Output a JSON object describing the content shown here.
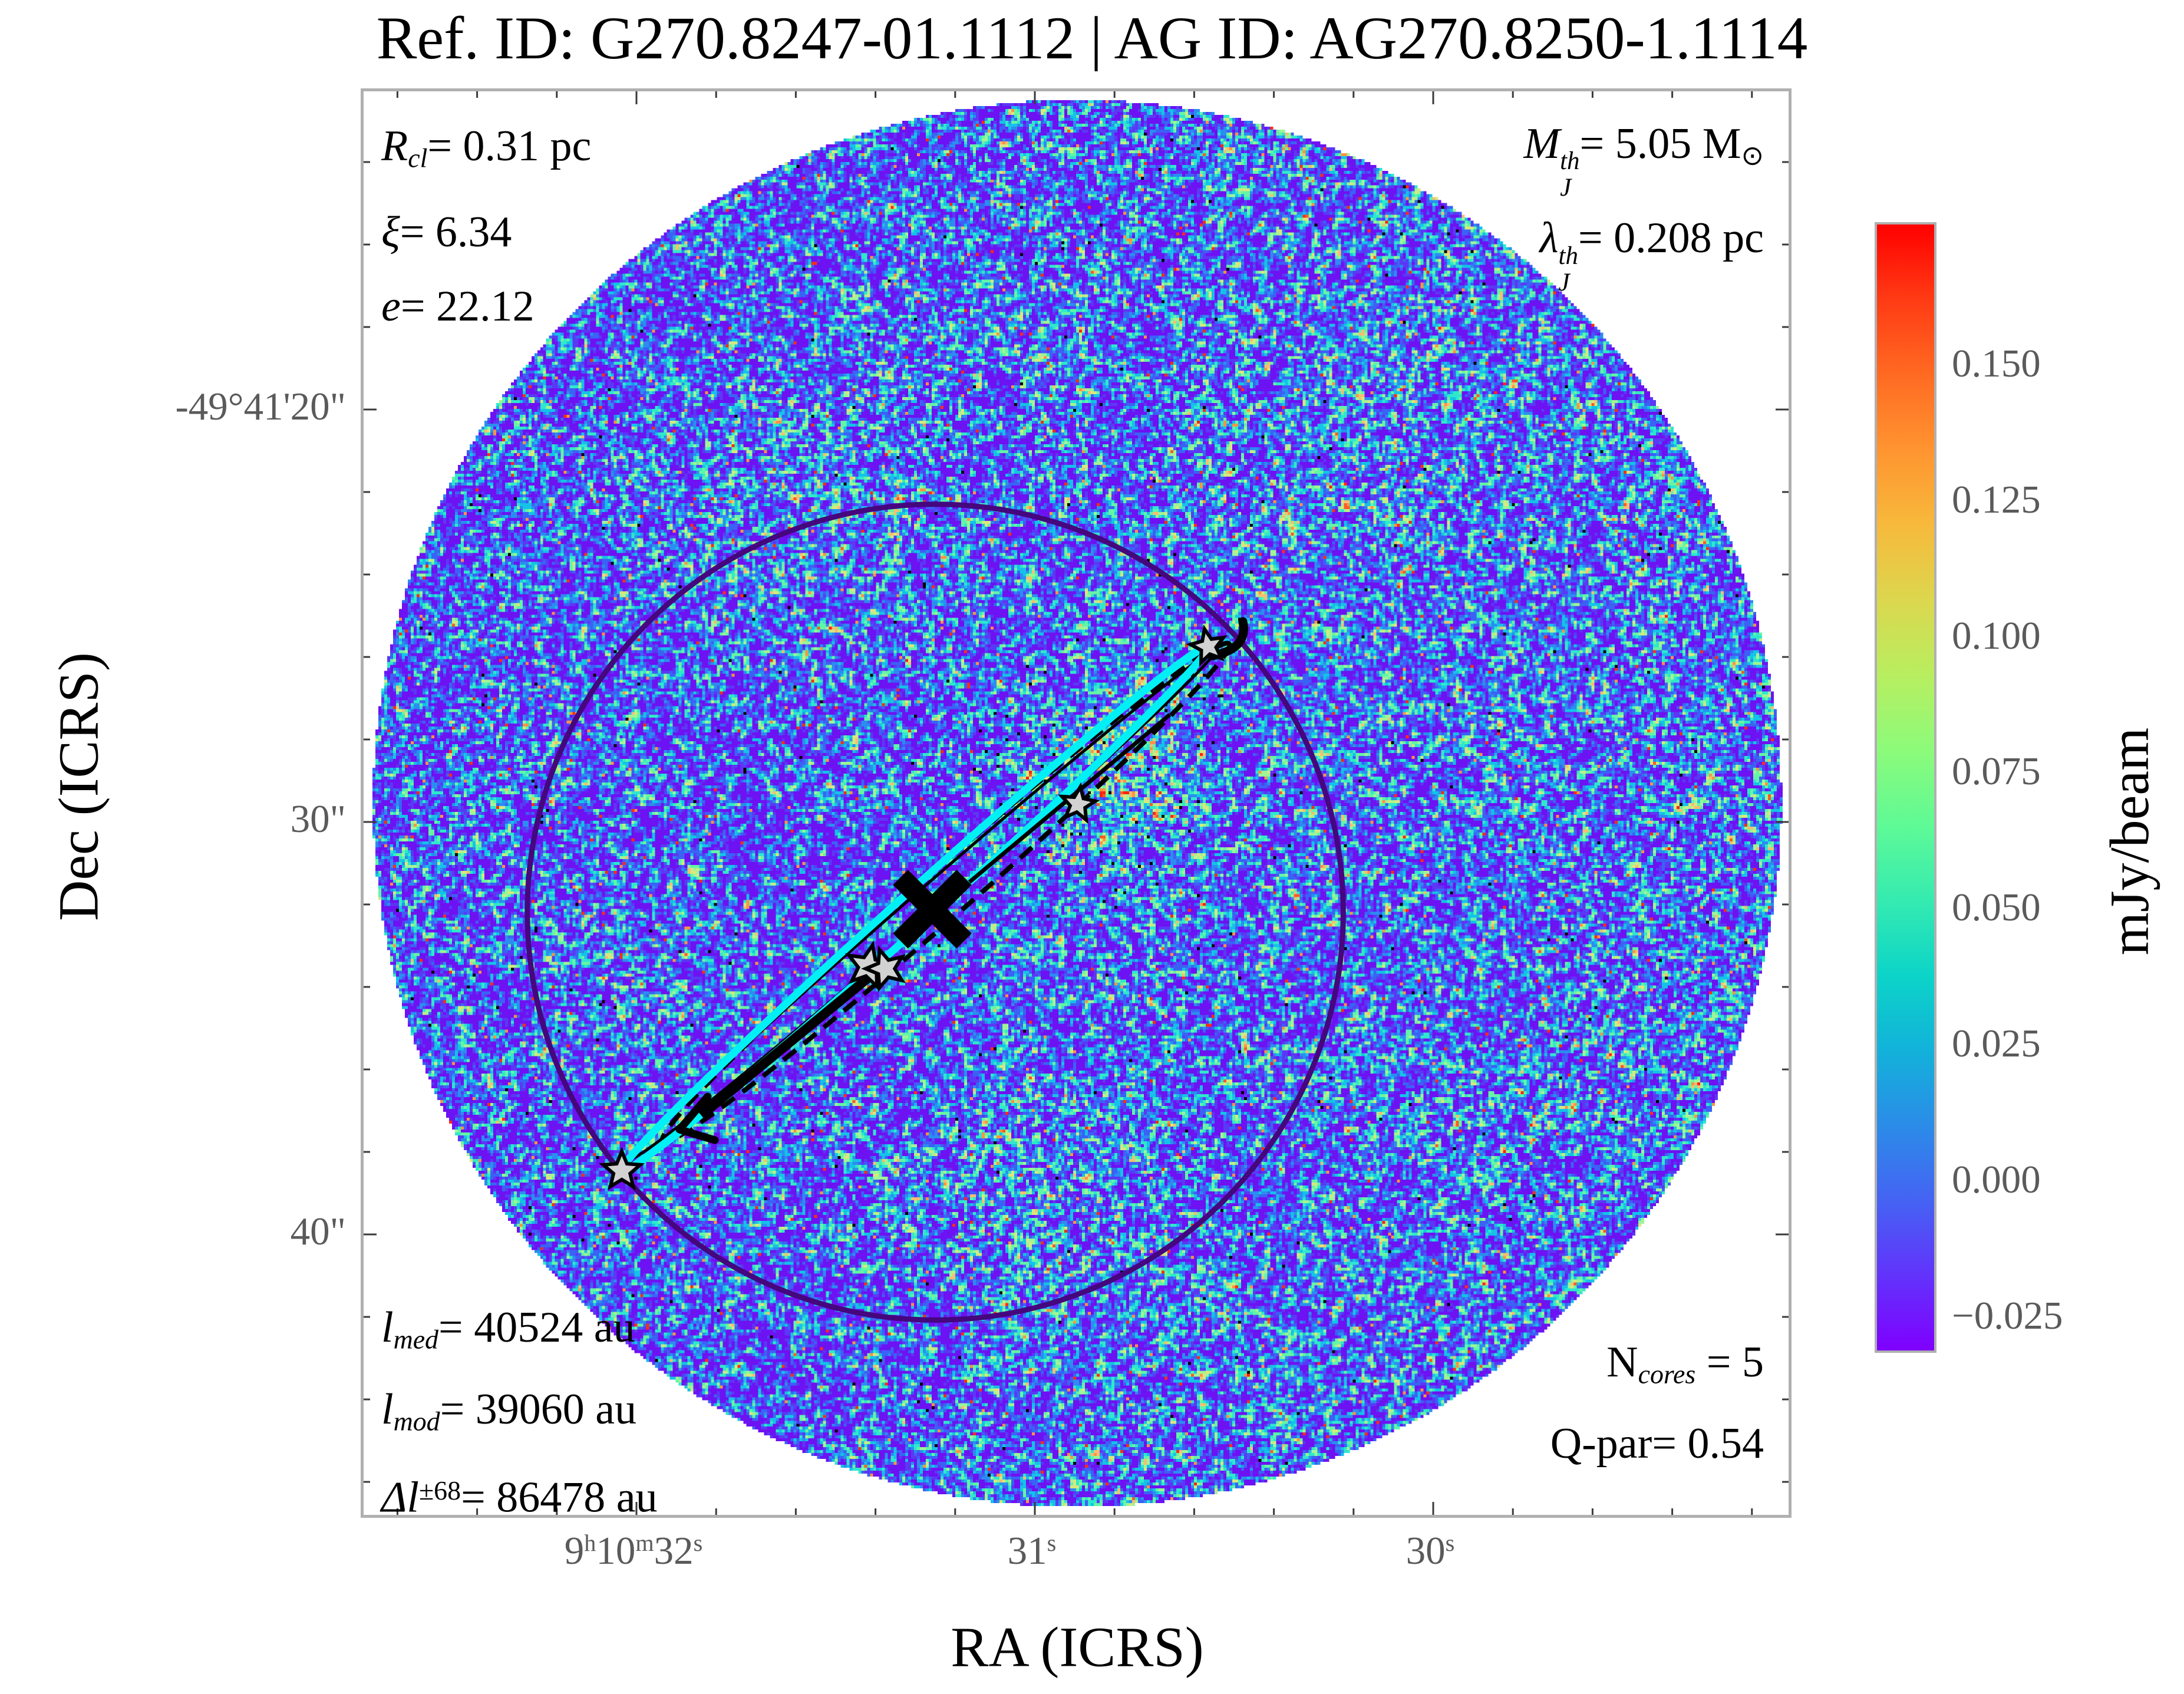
{
  "title": "Ref. ID: G270.8247-01.1112 | AG ID: AG270.8250-1.1114",
  "axes": {
    "xlabel": "RA (ICRS)",
    "ylabel": "Dec (ICRS)",
    "x_tick_labels": [
      [
        [
          "9",
          "h"
        ],
        [
          "10",
          "m"
        ],
        [
          "32",
          "s"
        ]
      ],
      [
        [
          "31",
          "s"
        ]
      ],
      [
        [
          "30",
          "s"
        ]
      ]
    ],
    "y_tick_labels": [
      "-49°41'20\"",
      "30\"",
      "40\""
    ]
  },
  "annotations": {
    "top_left": [
      [
        {
          "t": "R",
          "i": true
        },
        {
          "t": "cl",
          "sub": true,
          "i": true
        },
        {
          "t": "= 0.31 pc"
        }
      ],
      [
        {
          "t": "ξ",
          "i": true
        },
        {
          "t": "= 6.34"
        }
      ],
      [
        {
          "t": "e",
          "i": true
        },
        {
          "t": "= 22.12"
        }
      ]
    ],
    "top_right": [
      [
        {
          "t": "M",
          "i": true
        },
        {
          "stack": {
            "sup": "th",
            "sub": "J"
          },
          "i": true
        },
        {
          "t": "= 5.05 M"
        },
        {
          "t": "⊙",
          "sub": true
        }
      ],
      [
        {
          "t": "λ",
          "i": true
        },
        {
          "stack": {
            "sup": "th",
            "sub": "J"
          },
          "i": true
        },
        {
          "t": "= 0.208 pc"
        }
      ]
    ],
    "bottom_left": [
      [
        {
          "t": "l",
          "i": true
        },
        {
          "t": "med",
          "sub": true,
          "i": true
        },
        {
          "t": "= 40524 au"
        }
      ],
      [
        {
          "t": "l",
          "i": true
        },
        {
          "t": "mod",
          "sub": true,
          "i": true
        },
        {
          "t": "= 39060 au"
        }
      ],
      [
        {
          "t": "Δl",
          "i": true
        },
        {
          "t": "±68",
          "sup": true
        },
        {
          "t": "= 86478 au"
        }
      ]
    ],
    "bottom_right": [
      [
        {
          "t": "N"
        },
        {
          "t": "cores",
          "sub": true,
          "i": true
        },
        {
          "t": " = 5"
        }
      ],
      [
        {
          "t": "Q-par= 0.54"
        }
      ]
    ]
  },
  "colorbar": {
    "label": "mJy/beam",
    "tick_values": [
      0.15,
      0.125,
      0.1,
      0.075,
      0.05,
      0.025,
      0.0,
      -0.025
    ],
    "tick_labels": [
      "0.150",
      "0.125",
      "0.100",
      "0.075",
      "0.050",
      "0.025",
      "0.000",
      "−0.025"
    ],
    "vmin": -0.031,
    "vmax": 0.176
  },
  "colors": {
    "accent_cyan": "#00f0f5",
    "clump_circle": "#45067e",
    "star_fill": "#d2d2d2",
    "star_edge": "#000000",
    "tick_text": "#5a5a5a",
    "spine": "#b0b0b0",
    "cb_gradient_bottom_to_top": [
      "#7f00ff",
      "#6233fb",
      "#4563f3",
      "#2b8ce8",
      "#12b2da",
      "#0cd4c8",
      "#35ebb0",
      "#5ffa96",
      "#8cfb7a",
      "#b8ee60",
      "#dcd74e",
      "#f7b93c",
      "#ff9430",
      "#ff6a22",
      "#ff3b14",
      "#ff0000"
    ],
    "noise_palette": [
      [
        0.44,
        "#6d12f2"
      ],
      [
        0.5,
        "#5b38f5"
      ],
      [
        0.565,
        "#3a62f5"
      ],
      [
        0.615,
        "#2b8df0"
      ],
      [
        0.665,
        "#14c2e8"
      ],
      [
        0.715,
        "#2fe8cc"
      ],
      [
        0.765,
        "#64f5a6"
      ],
      [
        0.81,
        "#a0f596"
      ],
      [
        0.85,
        "#d8e87e"
      ],
      [
        0.885,
        "#f7bd72"
      ],
      [
        0.915,
        "#ff9345"
      ],
      [
        0.945,
        "#ff5a26"
      ],
      [
        1.01,
        "#ff2412"
      ]
    ],
    "speckle_black": "#000000",
    "speckle_red": "#ff2e12"
  },
  "chart_data": {
    "type": "heatmap",
    "title": "Ref. ID: G270.8247-01.1112 | AG ID: AG270.8250-1.1114",
    "xlabel": "RA (ICRS)",
    "ylabel": "Dec (ICRS)",
    "x_ticks": [
      "9h10m32s",
      "31s",
      "30s"
    ],
    "y_ticks": [
      "-49°41'20\"",
      "30\"",
      "40\""
    ],
    "x_axis_direction": "RA increases to the left",
    "x_range_ra_s": [
      32.69,
      29.11
    ],
    "y_range_dec": [
      "-49°41'12.3\"",
      "-49°41'46.9\""
    ],
    "colorbar_label": "mJy/beam",
    "colorbar_ticks": [
      0.15,
      0.125,
      0.1,
      0.075,
      0.05,
      0.025,
      0.0,
      -0.025
    ],
    "value_range_mjy_beam": [
      -0.031,
      0.176
    ],
    "clump": {
      "ref_id": "G270.8247-01.1112",
      "ag_id": "AG270.8250-1.1114",
      "R_cl_pc": 0.31,
      "xi": 6.34,
      "e": 22.12,
      "M_J_th_Msun": 5.05,
      "lambda_J_th_pc": 0.208,
      "l_med_au": 40524,
      "l_mod_au": 39060,
      "delta_l_pm68_au": 86478,
      "N_cores": 5,
      "Q_par": 0.54
    },
    "cores": [
      {
        "id": 1,
        "ra": "9h10m30.54s",
        "dec": "-49°41'25.8\"",
        "fx": 0.5927,
        "fy": 0.3899,
        "r": 30,
        "rot": -12
      },
      {
        "id": 2,
        "ra": "9h10m30.89s",
        "dec": "-49°41'29.6\"",
        "fx": 0.5013,
        "fy": 0.5008,
        "r": 30,
        "rot": 8
      },
      {
        "id": 3,
        "ra": "9h10m31.42s",
        "dec": "-49°41'33.5\"",
        "fx": 0.354,
        "fy": 0.6147,
        "r": 37,
        "rot": 12
      },
      {
        "id": 4,
        "ra": "9h10m31.38s",
        "dec": "-49°41'33.6\"",
        "fx": 0.3664,
        "fy": 0.6163,
        "r": 34,
        "rot": -18
      },
      {
        "id": 5,
        "ra": "9h10m32.03s",
        "dec": "-49°41'38.8\"",
        "fx": 0.1812,
        "fy": 0.7583,
        "r": 33,
        "rot": 0
      }
    ],
    "center_cross": {
      "ra": "9h10m31.26s",
      "dec": "-49°41'32.1\"",
      "fx": 0.3991,
      "fy": 0.5745
    },
    "clump_circle": {
      "fx": 0.4012,
      "fy": 0.5766,
      "fr": 0.2863,
      "radius_pc": 0.31
    },
    "filament_axis": {
      "angle_deg": -41.8,
      "half_length_frac": 0.2759
    },
    "legend_position": "none",
    "grid": false
  }
}
